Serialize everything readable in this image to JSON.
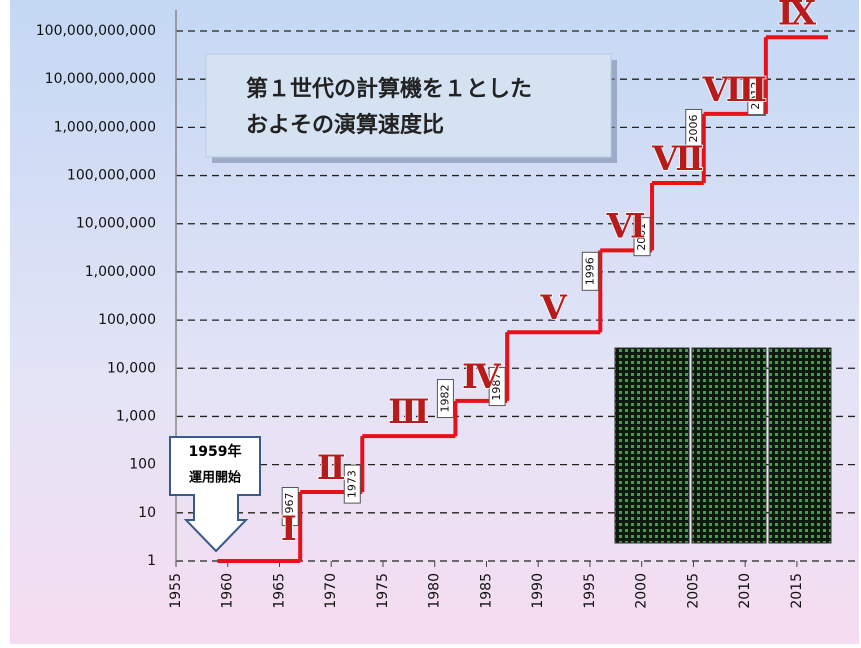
{
  "chart_data": {
    "type": "step",
    "log_y": true,
    "grid": true,
    "title_lines": [
      "第１世代の計算機を１とした",
      "およその演算速度比"
    ],
    "annotation_lines": [
      "1959年",
      "運用開始"
    ],
    "generation_labels": [
      "Ⅰ",
      "Ⅱ",
      "Ⅲ",
      "Ⅳ",
      "Ⅴ",
      "Ⅵ",
      "Ⅶ",
      "Ⅷ",
      "Ⅸ"
    ],
    "x": [
      1959,
      1967,
      1973,
      1982,
      1987,
      1996,
      2001,
      2006,
      2012,
      2018
    ],
    "series": [
      {
        "color": "#e8111a",
        "values": [
          1,
          27,
          390,
          2100,
          56000,
          2800000,
          70000000,
          1900000000,
          74000000000,
          74000000000
        ]
      }
    ],
    "xlim": [
      1955,
      2021
    ],
    "xticks": [
      1955,
      1960,
      1965,
      1970,
      1975,
      1980,
      1985,
      1990,
      1995,
      2000,
      2005,
      2010,
      2015
    ],
    "ylim": [
      1,
      100000000000
    ],
    "yticks": [
      1,
      10,
      100,
      {
        "value": 1000,
        "label": "1,000"
      },
      {
        "value": 10000,
        "label": "10,000"
      },
      {
        "value": 100000,
        "label": "100,000"
      },
      {
        "value": 1000000,
        "label": "1,000,000"
      },
      {
        "value": 10000000,
        "label": "10,000,000"
      },
      {
        "value": 100000000,
        "label": "100,000,000"
      },
      {
        "value": 1000000000,
        "label": "1,000,000,000"
      },
      {
        "value": 10000000000,
        "label": "10,000,000,000"
      },
      {
        "value": 100000000000,
        "label": "100,000,000,000"
      }
    ]
  }
}
